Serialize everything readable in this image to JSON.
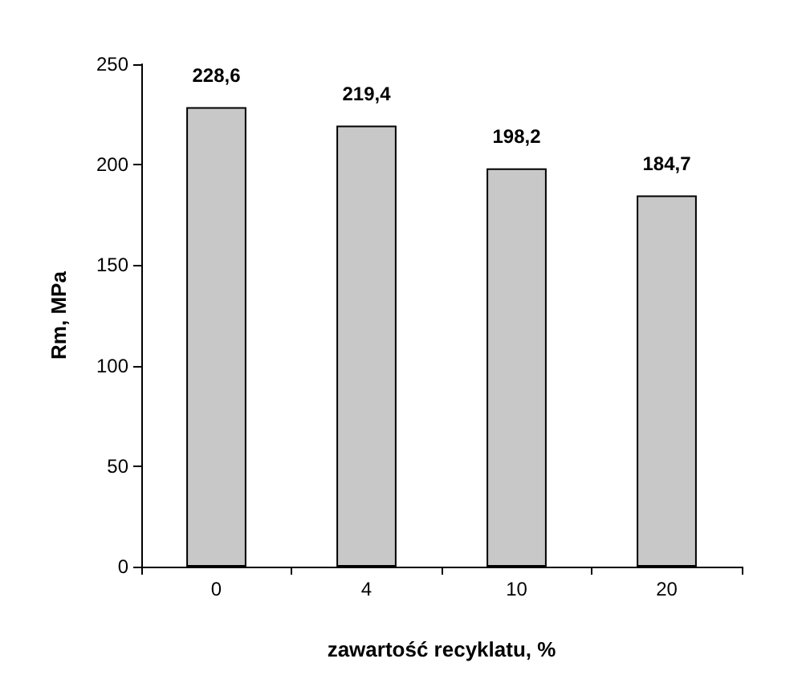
{
  "chart_data": {
    "type": "bar",
    "xlabel": "zawartość recyklatu, %",
    "ylabel": "Rm, MPa",
    "categories": [
      "0",
      "4",
      "10",
      "20"
    ],
    "values": [
      228.6,
      219.4,
      198.2,
      184.7
    ],
    "value_labels": [
      "228,6",
      "219,4",
      "198,2",
      "184,7"
    ],
    "color": "#c8c8c8",
    "ylim": [
      0,
      250
    ],
    "yticks": [
      0,
      50,
      100,
      150,
      200,
      250
    ],
    "grid": false
  }
}
